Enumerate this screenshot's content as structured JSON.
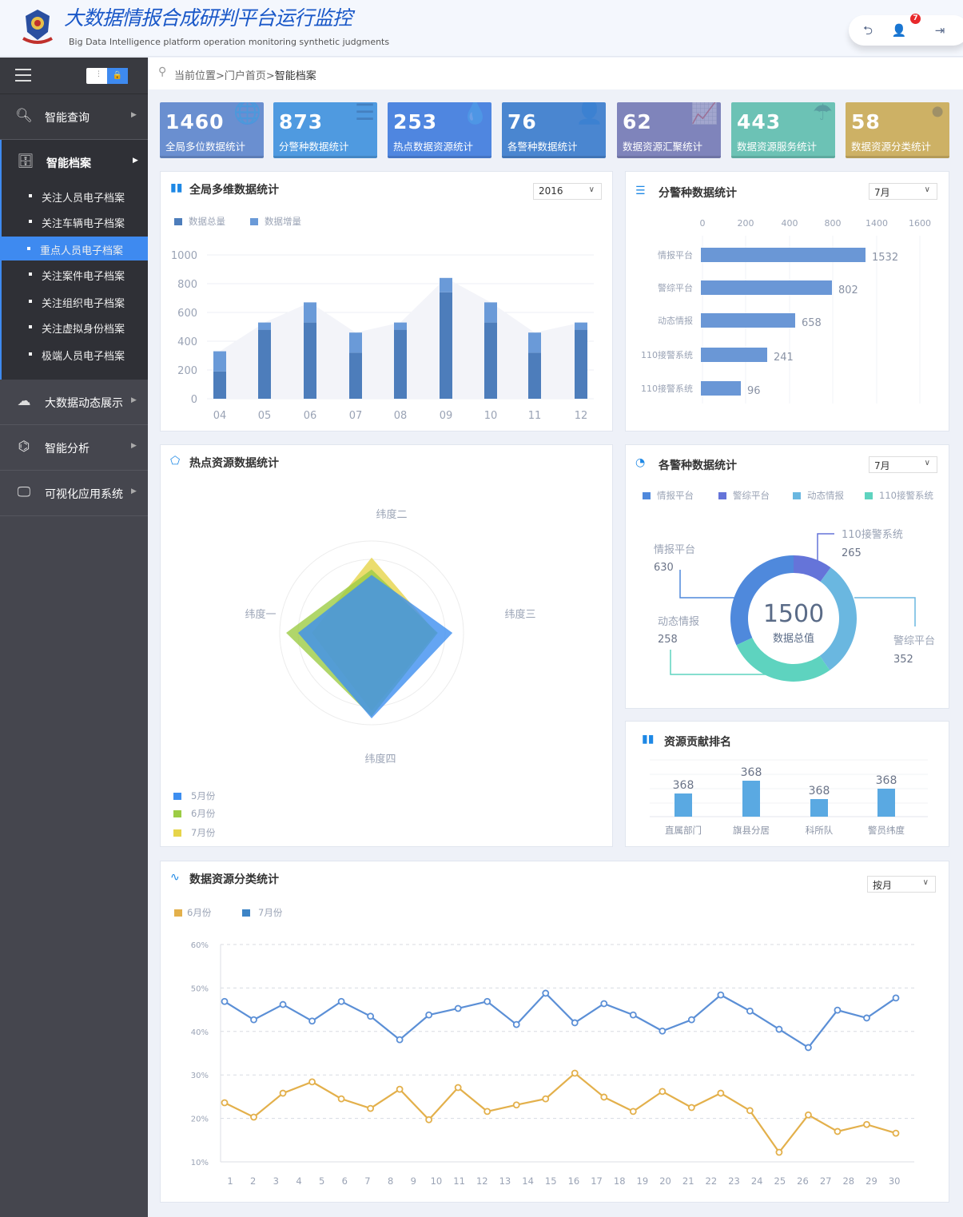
{
  "header": {
    "title": "大数据情报合成研判平台运行监控",
    "subtitle": "Big Data Intelligence platform operation monitoring synthetic judgments",
    "notification_count": "7",
    "icons": [
      "back-icon",
      "user-icon",
      "logout-icon"
    ]
  },
  "sidebar": {
    "menu": [
      {
        "label": "智能查询",
        "icon": "search-icon"
      },
      {
        "label": "智能档案",
        "icon": "archive-icon"
      },
      {
        "label": "大数据动态展示",
        "icon": "cloud-icon"
      },
      {
        "label": "智能分析",
        "icon": "network-icon"
      },
      {
        "label": "可视化应用系统",
        "icon": "monitor-eye-icon"
      }
    ],
    "submenu": [
      "关注人员电子档案",
      "关注车辆电子档案",
      "重点人员电子档案",
      "关注案件电子档案",
      "关注组织电子档案",
      "关注虚拟身份档案",
      "极端人员电子档案"
    ],
    "active_sub": "重点人员电子档案"
  },
  "breadcrumb": {
    "prefix": "当前位置>门户首页>",
    "current": "智能档案"
  },
  "stats": [
    {
      "value": "1460",
      "label": "全局多位数据统计",
      "color": "#6a8fd0"
    },
    {
      "value": "873",
      "label": "分警种数据统计",
      "color": "#4f9ae0"
    },
    {
      "value": "253",
      "label": "热点数据资源统计",
      "color": "#4f86e0"
    },
    {
      "value": "76",
      "label": "各警种数据统计",
      "color": "#4a86d0"
    },
    {
      "value": "62",
      "label": "数据资源汇聚统计",
      "color": "#7f84bb"
    },
    {
      "value": "443",
      "label": "数据资源服务统计",
      "color": "#6cc2b5"
    },
    {
      "value": "58",
      "label": "数据资源分类统计",
      "color": "#cdb165"
    }
  ],
  "panels": {
    "global": {
      "title": "全局多维数据统计",
      "select": "2016"
    },
    "police": {
      "title": "分警种数据统计",
      "select": "7月"
    },
    "hot": {
      "title": "热点资源数据统计"
    },
    "each": {
      "title": "各警种数据统计",
      "select": "7月"
    },
    "rank": {
      "title": "资源贡献排名"
    },
    "classify": {
      "title": "数据资源分类统计",
      "select": "按月"
    }
  },
  "chart_data": [
    {
      "type": "bar",
      "stacked": true,
      "categories": [
        "04",
        "05",
        "06",
        "07",
        "08",
        "09",
        "10",
        "11",
        "12"
      ],
      "series": [
        {
          "name": "数据总量",
          "color": "#4d7dbb",
          "values": [
            190,
            480,
            530,
            320,
            480,
            740,
            530,
            320,
            480
          ]
        },
        {
          "name": "数据增量",
          "color": "#6a9ad8",
          "values": [
            140,
            50,
            140,
            140,
            50,
            100,
            140,
            140,
            50
          ]
        }
      ],
      "yticks": [
        "0",
        "200",
        "400",
        "600",
        "800",
        "1000"
      ],
      "ylim": [
        0,
        1000
      ],
      "grid": true,
      "legend": "top-left"
    },
    {
      "type": "bar",
      "orientation": "horizontal",
      "categories": [
        "情报平台",
        "警综平台",
        "动态情报",
        "110接警系统",
        "110接警系统"
      ],
      "values": [
        1532,
        802,
        658,
        241,
        96
      ],
      "xticks": [
        "0",
        "200",
        "400",
        "800",
        "1400",
        "1600"
      ],
      "color": "#6a97d6"
    },
    {
      "type": "radar",
      "indicators": [
        "纬度一",
        "纬度二",
        "纬度三",
        "纬度四"
      ],
      "max": 100,
      "series": [
        {
          "name": "7月份",
          "color": "#e6d44a",
          "values": [
            65,
            82,
            70,
            85
          ]
        },
        {
          "name": "6月份",
          "color": "#9ccc45",
          "values": [
            93,
            69,
            72,
            91
          ]
        },
        {
          "name": "5月份",
          "color": "#3d8ef0",
          "values": [
            80,
            63,
            88,
            93
          ]
        }
      ],
      "legend": "bottom-left"
    },
    {
      "type": "pie",
      "donut": true,
      "total": "1500",
      "total_label": "数据总值",
      "slices": [
        {
          "name": "情报平台",
          "value": 630,
          "color": "#4f89dc"
        },
        {
          "name": "警综平台",
          "value": 352,
          "color": "#6ab7e0"
        },
        {
          "name": "动态情报",
          "value": 258,
          "color": "#5ed3bf"
        },
        {
          "name": "110接警系统",
          "value": 265,
          "color": "#6574d9"
        }
      ],
      "legend": "top"
    },
    {
      "type": "bar",
      "categories": [
        "直属部门",
        "旗县分居",
        "科所队",
        "警员纬度"
      ],
      "labels": [
        "368",
        "368",
        "368",
        "368"
      ],
      "color": "#5aa9e2"
    },
    {
      "type": "line",
      "xticks": [
        "1",
        "2",
        "3",
        "4",
        "5",
        "6",
        "7",
        "8",
        "9",
        "10",
        "11",
        "12",
        "13",
        "14",
        "15",
        "16",
        "17",
        "18",
        "19",
        "20",
        "21",
        "22",
        "23",
        "24",
        "25",
        "26",
        "27",
        "28",
        "29",
        "30"
      ],
      "yticks": [
        "10%",
        "20%",
        "30%",
        "40%",
        "50%",
        "60%"
      ],
      "ylim": [
        10,
        60
      ],
      "grid": true,
      "legend": "top-left",
      "series": [
        {
          "name": "6月份",
          "color": "#e3b04b",
          "values": [
            23.6,
            20.3,
            25.8,
            28.4,
            24.5,
            22.3,
            26.7,
            19.7,
            27.1,
            21.6,
            23.1,
            24.5,
            30.4,
            24.9,
            21.6,
            26.2,
            22.5,
            25.8,
            21.8,
            12.2,
            20.8,
            17,
            18.6,
            16.6
          ]
        },
        {
          "name": "7月份",
          "color": "#5b8fd6",
          "values": [
            46.9,
            42.7,
            46.2,
            42.4,
            46.9,
            43.5,
            38.1,
            43.8,
            45.3,
            46.9,
            41.6,
            48.8,
            42,
            46.4,
            43.8,
            40.1,
            42.7,
            48.4,
            44.7,
            40.5,
            36.3,
            44.9,
            43.1,
            47.7
          ]
        }
      ]
    }
  ]
}
